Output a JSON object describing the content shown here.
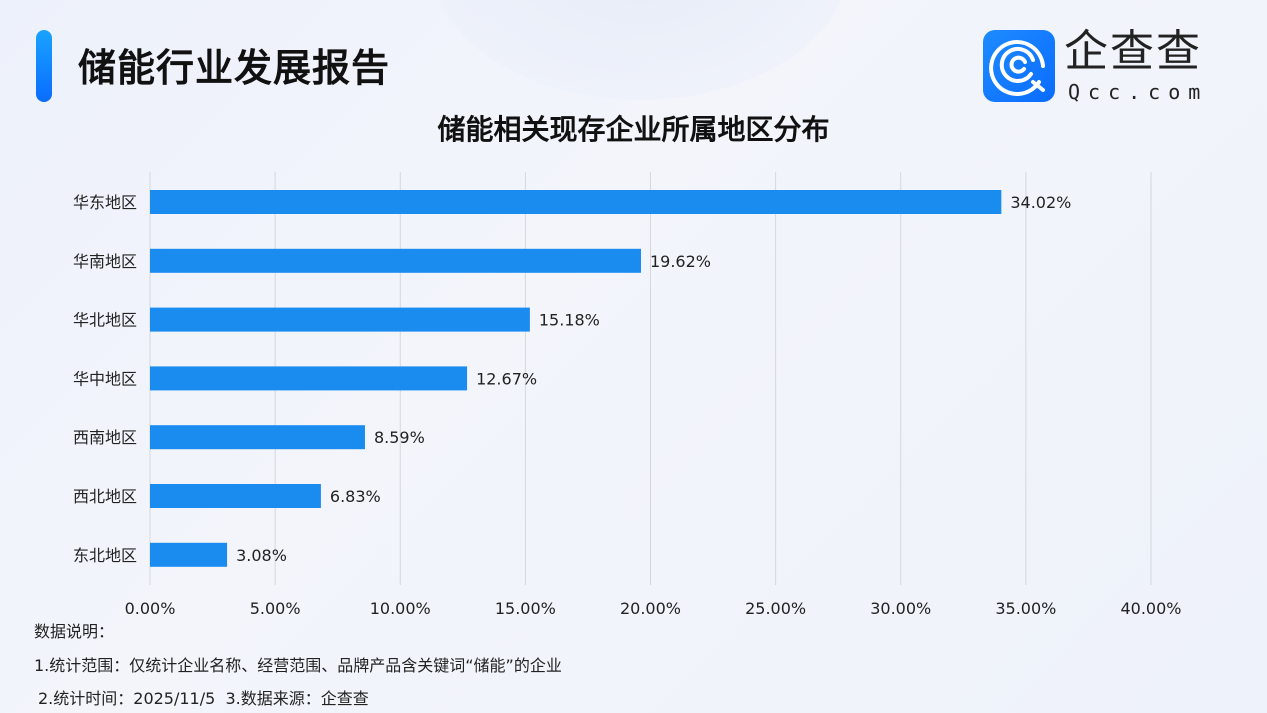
{
  "header": {
    "title": "储能行业发展报告",
    "logo_text": "企查查",
    "logo_sub": "Qcc.com"
  },
  "chart_data": {
    "type": "bar",
    "orientation": "horizontal",
    "title": "储能相关现存企业所属地区分布",
    "categories": [
      "华东地区",
      "华南地区",
      "华北地区",
      "华中地区",
      "西南地区",
      "西北地区",
      "东北地区"
    ],
    "values": [
      34.02,
      19.62,
      15.18,
      12.67,
      8.59,
      6.83,
      3.08
    ],
    "data_labels": [
      "34.02%",
      "19.62%",
      "15.18%",
      "12.67%",
      "8.59%",
      "6.83%",
      "3.08%"
    ],
    "xlim": [
      0,
      40
    ],
    "x_ticks": [
      "0.00%",
      "5.00%",
      "10.00%",
      "15.00%",
      "20.00%",
      "25.00%",
      "30.00%",
      "35.00%",
      "40.00%"
    ],
    "grid": "vertical",
    "bar_color": "#1a8cf0"
  },
  "notes": {
    "heading": "数据说明：",
    "line1": "1.统计范围：仅统计企业名称、经营范围、品牌产品含关键词“储能”的企业",
    "line2": "2.统计时间：2025/11/5  3.数据来源：企查查"
  }
}
